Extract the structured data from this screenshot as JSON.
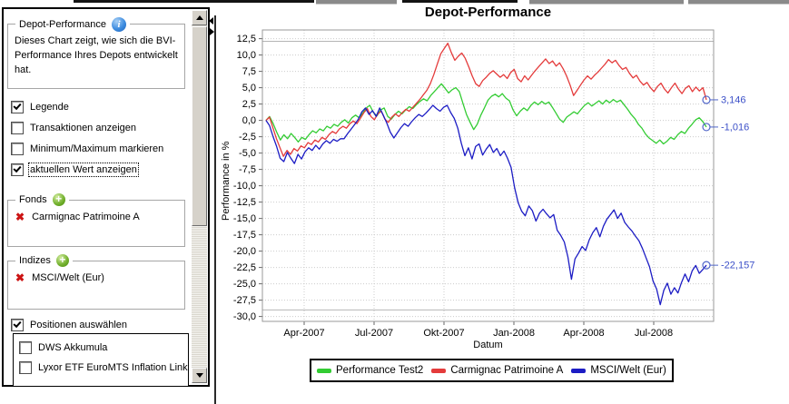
{
  "sidebar": {
    "info_box": {
      "title": "Depot-Performance",
      "description": "Dieses Chart zeigt, wie sich die BVI-Performance Ihres Depots entwickelt hat."
    },
    "options": [
      {
        "label": "Legende",
        "checked": true,
        "focused": false
      },
      {
        "label": "Transaktionen anzeigen",
        "checked": false,
        "focused": false
      },
      {
        "label": "Minimum/Maximum markieren",
        "checked": false,
        "focused": false
      },
      {
        "label": "aktuellen Wert anzeigen",
        "checked": true,
        "focused": true
      }
    ],
    "fonds": {
      "title": "Fonds",
      "items": [
        "Carmignac Patrimoine A"
      ]
    },
    "indizes": {
      "title": "Indizes",
      "items": [
        "MSCI/Welt (Eur)"
      ]
    },
    "positions_checkbox": {
      "label": "Positionen auswählen",
      "checked": true
    },
    "positions_list": [
      {
        "label": "DWS Akkumula",
        "checked": false
      },
      {
        "label": "Lyxor ETF EuroMTS Inflation Linked",
        "checked": false
      }
    ]
  },
  "chart_data": {
    "type": "line",
    "title": "Depot-Performance",
    "xlabel": "Datum",
    "ylabel": "Performance in %",
    "ylim": [
      -30.0,
      12.5
    ],
    "ytick_step": 2.5,
    "xticks": [
      "Apr-2007",
      "Jul-2007",
      "Okt-2007",
      "Jan-2008",
      "Apr-2008",
      "Jul-2008"
    ],
    "x_range_note": "values sampled uniformly from ~Feb-2007 to ~Sep-2008",
    "grid": "dotted",
    "legend_position": "bottom",
    "grid_color": "#cccccc",
    "plot_border_color": "#999999",
    "end_marker_color": "#5065c8",
    "label_color": "#3c50c8",
    "solid_guides": [
      12.1,
      -29.0
    ],
    "series": [
      {
        "name": "Performance Test2",
        "color": "#33cc33",
        "end_label": "-1,016",
        "values": [
          0,
          0.6,
          -0.5,
          -1.8,
          -3.0,
          -2.2,
          -2.8,
          -2.0,
          -2.6,
          -3.3,
          -2.6,
          -2.9,
          -2.2,
          -1.6,
          -1.9,
          -1.3,
          -1.6,
          -0.9,
          -1.2,
          -0.6,
          -0.9,
          -0.3,
          0.1,
          -0.4,
          0.4,
          0.8,
          0.4,
          1.1,
          1.9,
          2.3,
          1.2,
          0.7,
          1.6,
          1.9,
          0.6,
          0.2,
          0.9,
          1.4,
          1.0,
          1.6,
          2.1,
          1.8,
          2.4,
          2.9,
          3.3,
          3.0,
          3.8,
          4.4,
          5.0,
          5.6,
          4.9,
          4.2,
          4.7,
          5.0,
          4.4,
          2.6,
          0.9,
          -0.3,
          -1.4,
          -0.6,
          0.8,
          1.9,
          3.1,
          3.7,
          4.0,
          3.6,
          4.1,
          3.4,
          3.0,
          1.6,
          0.7,
          1.4,
          1.9,
          1.5,
          2.3,
          2.8,
          2.4,
          2.9,
          2.5,
          2.8,
          2.0,
          1.1,
          0.2,
          -0.3,
          0.5,
          0.9,
          1.3,
          1.0,
          1.7,
          2.3,
          2.7,
          2.2,
          2.6,
          3.0,
          2.5,
          3.1,
          2.7,
          3.2,
          2.8,
          3.1,
          2.4,
          1.7,
          0.9,
          0.3,
          -0.6,
          -1.2,
          -2.1,
          -2.7,
          -3.1,
          -3.5,
          -3.0,
          -3.6,
          -3.2,
          -2.6,
          -2.9,
          -2.2,
          -1.7,
          -2.0,
          -1.2,
          -0.6,
          0.1,
          0.4,
          -0.2,
          -1.016
        ]
      },
      {
        "name": "Carmignac Patrimoine A",
        "color": "#e43b3b",
        "end_label": "3,146",
        "values": [
          0,
          0.5,
          -1.2,
          -2.8,
          -4.2,
          -5.5,
          -4.6,
          -5.2,
          -4.3,
          -4.7,
          -3.9,
          -4.2,
          -3.4,
          -3.7,
          -3.0,
          -3.3,
          -2.6,
          -2.9,
          -2.2,
          -1.7,
          -2.0,
          -1.3,
          -0.9,
          -1.2,
          -0.5,
          -0.1,
          -0.5,
          0.3,
          1.2,
          1.8,
          0.6,
          0.1,
          1.0,
          1.4,
          0.2,
          -0.3,
          0.5,
          1.0,
          0.6,
          1.2,
          1.7,
          1.4,
          2.0,
          2.6,
          3.2,
          3.9,
          4.6,
          5.6,
          7.0,
          8.6,
          10.2,
          11.0,
          11.8,
          10.4,
          9.2,
          9.8,
          10.3,
          9.5,
          8.2,
          6.8,
          5.6,
          5.2,
          6.1,
          6.6,
          7.2,
          7.6,
          7.1,
          6.6,
          7.0,
          6.4,
          7.3,
          7.8,
          6.4,
          5.9,
          6.8,
          6.2,
          6.9,
          7.6,
          8.2,
          8.8,
          9.4,
          8.7,
          9.1,
          8.3,
          8.8,
          7.9,
          6.8,
          5.4,
          3.8,
          4.6,
          5.4,
          6.2,
          6.8,
          6.3,
          6.9,
          7.4,
          8.0,
          8.6,
          9.3,
          8.8,
          9.2,
          8.4,
          7.8,
          8.1,
          7.2,
          6.5,
          6.9,
          6.0,
          5.4,
          5.8,
          5.0,
          4.4,
          5.2,
          5.7,
          4.8,
          4.2,
          5.0,
          5.7,
          4.8,
          4.1,
          4.9,
          5.3,
          4.4,
          5.1,
          4.5,
          5.0,
          3.146
        ]
      },
      {
        "name": "MSCI/Welt (Eur)",
        "color": "#1c1cc4",
        "end_label": "-22,157",
        "values": [
          0,
          -0.8,
          -2.5,
          -4.0,
          -5.8,
          -6.3,
          -4.9,
          -5.8,
          -6.6,
          -5.2,
          -5.9,
          -4.8,
          -4.2,
          -4.6,
          -3.8,
          -4.4,
          -3.6,
          -3.1,
          -3.5,
          -2.9,
          -3.2,
          -2.8,
          -2.8,
          -2.0,
          -1.3,
          -0.6,
          0.2,
          1.3,
          1.9,
          0.9,
          1.5,
          0.6,
          1.9,
          0.8,
          -0.4,
          -1.8,
          -2.7,
          -1.9,
          -1.1,
          -0.5,
          -0.9,
          -0.2,
          0.4,
          0.9,
          0.6,
          1.1,
          1.7,
          2.3,
          1.8,
          1.4,
          2.0,
          2.3,
          1.2,
          0.3,
          -1.2,
          -3.5,
          -5.4,
          -4.2,
          -5.9,
          -4.0,
          -3.6,
          -5.3,
          -4.4,
          -3.7,
          -4.9,
          -4.3,
          -5.4,
          -4.7,
          -5.8,
          -7.2,
          -10.3,
          -12.6,
          -13.9,
          -14.6,
          -13.1,
          -13.8,
          -15.4,
          -14.2,
          -13.6,
          -14.3,
          -14.9,
          -14.4,
          -16.8,
          -17.6,
          -18.6,
          -20.9,
          -24.3,
          -21.2,
          -20.3,
          -19.3,
          -19.9,
          -18.3,
          -17.2,
          -16.4,
          -17.8,
          -16.2,
          -15.1,
          -14.4,
          -13.7,
          -15.0,
          -14.2,
          -15.6,
          -16.3,
          -16.9,
          -17.7,
          -18.4,
          -19.6,
          -21.0,
          -22.4,
          -24.6,
          -25.8,
          -28.2,
          -26.0,
          -24.9,
          -26.6,
          -25.6,
          -26.4,
          -24.8,
          -23.5,
          -24.7,
          -23.0,
          -22.2,
          -23.4,
          -22.8,
          -22.157
        ]
      }
    ]
  }
}
